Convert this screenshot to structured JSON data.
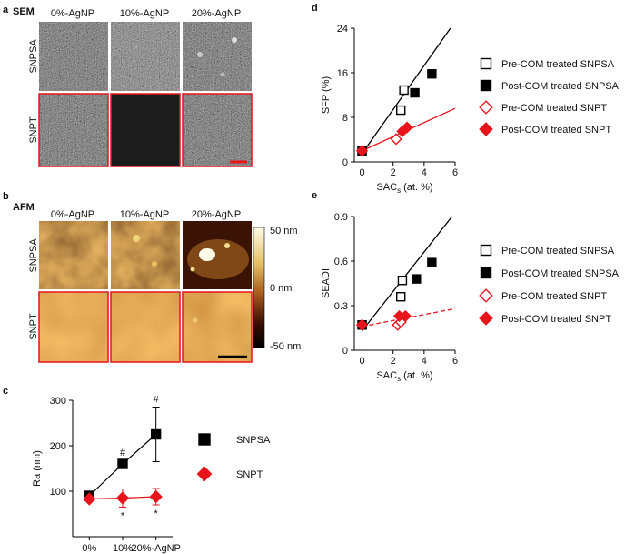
{
  "panels": {
    "a": {
      "letter": "a",
      "title": "SEM",
      "columns": [
        "0%-AgNP",
        "10%-AgNP",
        "20%-AgNP"
      ],
      "rows": [
        "SNPSA",
        "SNPT"
      ]
    },
    "b": {
      "letter": "b",
      "title": "AFM",
      "columns": [
        "0%-AgNP",
        "10%-AgNP",
        "20%-AgNP"
      ],
      "rows": [
        "SNPSA",
        "SNPT"
      ],
      "colorbar_labels": [
        "50 nm",
        "0 nm",
        "-50 nm"
      ]
    }
  },
  "chart_data": [
    {
      "type": "line",
      "label": "c",
      "y_label": "Ra (nm)",
      "categories": [
        "0%",
        "10%",
        "20%-AgNP"
      ],
      "ylim": [
        0,
        300
      ],
      "yticks": [
        100,
        200,
        300
      ],
      "series": [
        {
          "name": "SNPSA",
          "color": "#000000",
          "marker": "square",
          "values": [
            90,
            160,
            225
          ],
          "errors": [
            6,
            8,
            60
          ]
        },
        {
          "name": "SNPT",
          "color": "#e8141c",
          "marker": "diamond",
          "values": [
            83,
            85,
            88
          ],
          "errors": [
            5,
            20,
            18
          ]
        }
      ],
      "annotations": [
        {
          "text": "#",
          "series": 0,
          "category": 1
        },
        {
          "text": "#",
          "series": 0,
          "category": 2
        },
        {
          "text": "*",
          "series": 1,
          "category": 1
        },
        {
          "text": "*",
          "series": 1,
          "category": 2
        }
      ]
    },
    {
      "type": "scatter",
      "label": "d",
      "y_label": "SFP (%)",
      "x_label": [
        "SAC",
        "s",
        " (at. %)"
      ],
      "xlim": [
        -0.5,
        6
      ],
      "xticks": [
        0,
        2,
        4,
        6
      ],
      "ylim": [
        0,
        24
      ],
      "yticks": [
        0,
        8,
        16,
        24
      ],
      "series": [
        {
          "name": "Pre-COM treated SNPSA",
          "color": "#000000",
          "marker": "square",
          "filled": false,
          "x": [
            0,
            2.5,
            2.7
          ],
          "values": [
            2,
            9.3,
            12.9
          ]
        },
        {
          "name": "Post-COM treated SNPSA",
          "color": "#000000",
          "marker": "square",
          "filled": true,
          "x": [
            0,
            3.4,
            4.5
          ],
          "values": [
            2,
            12.4,
            15.8
          ]
        },
        {
          "name": "Pre-COM treated SNPT",
          "color": "#e8141c",
          "marker": "diamond",
          "filled": false,
          "x": [
            0,
            2.2
          ],
          "values": [
            2,
            4.1
          ]
        },
        {
          "name": "Post-COM treated SNPT",
          "color": "#e8141c",
          "marker": "diamond",
          "filled": true,
          "x": [
            0,
            2.6,
            2.9
          ],
          "values": [
            2,
            5.5,
            6.2
          ]
        }
      ],
      "fits": [
        {
          "color": "#000000",
          "dashed": false,
          "x": [
            0,
            5.7
          ],
          "values": [
            1.5,
            24
          ]
        },
        {
          "color": "#e8141c",
          "dashed": false,
          "x": [
            0,
            6
          ],
          "values": [
            2,
            9.6
          ]
        }
      ]
    },
    {
      "type": "scatter",
      "label": "e",
      "y_label": "SEADI",
      "x_label": [
        "SAC",
        "s",
        " (at. %)"
      ],
      "xlim": [
        -0.5,
        6
      ],
      "xticks": [
        0,
        2,
        4,
        6
      ],
      "ylim": [
        0,
        0.9
      ],
      "yticks": [
        0,
        0.3,
        0.6,
        0.9
      ],
      "series": [
        {
          "name": "Pre-COM treated SNPSA",
          "color": "#000000",
          "marker": "square",
          "filled": false,
          "x": [
            0,
            2.5,
            2.6
          ],
          "values": [
            0.17,
            0.36,
            0.47
          ]
        },
        {
          "name": "Post-COM treated SNPSA",
          "color": "#000000",
          "marker": "square",
          "filled": true,
          "x": [
            0,
            3.5,
            4.5
          ],
          "values": [
            0.17,
            0.48,
            0.59
          ]
        },
        {
          "name": "Pre-COM treated SNPT",
          "color": "#e8141c",
          "marker": "diamond",
          "filled": false,
          "x": [
            0,
            2.3,
            2.5
          ],
          "values": [
            0.17,
            0.17,
            0.19
          ]
        },
        {
          "name": "Post-COM treated SNPT",
          "color": "#e8141c",
          "marker": "diamond",
          "filled": true,
          "x": [
            0,
            2.4,
            2.8
          ],
          "values": [
            0.17,
            0.23,
            0.23
          ]
        }
      ],
      "fits": [
        {
          "color": "#000000",
          "dashed": false,
          "x": [
            0,
            5.8
          ],
          "values": [
            0.13,
            0.9
          ]
        },
        {
          "color": "#e8141c",
          "dashed": true,
          "x": [
            0,
            6
          ],
          "values": [
            0.16,
            0.28
          ]
        }
      ]
    }
  ]
}
